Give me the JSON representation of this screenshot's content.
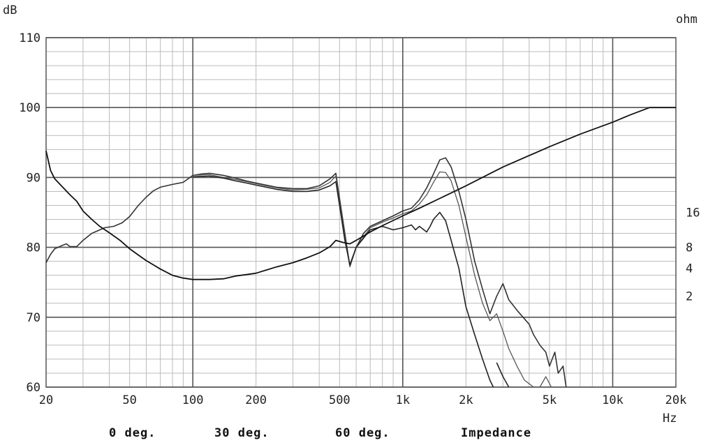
{
  "chart_data": {
    "type": "line",
    "x_scale": "log",
    "xlim": [
      20,
      20000
    ],
    "ylim": [
      60,
      110
    ],
    "grid": true,
    "y_unit": "dB",
    "y2_unit": "ohm",
    "x_unit": "Hz",
    "x_ticks": [
      {
        "v": 20,
        "label": "20"
      },
      {
        "v": 50,
        "label": "50"
      },
      {
        "v": 100,
        "label": "100"
      },
      {
        "v": 200,
        "label": "200"
      },
      {
        "v": 500,
        "label": "500"
      },
      {
        "v": 1000,
        "label": "1k"
      },
      {
        "v": 2000,
        "label": "2k"
      },
      {
        "v": 5000,
        "label": "5k"
      },
      {
        "v": 10000,
        "label": "10k"
      },
      {
        "v": 20000,
        "label": "20k"
      }
    ],
    "y_ticks": [
      {
        "v": 60,
        "label": "60"
      },
      {
        "v": 70,
        "label": "70"
      },
      {
        "v": 80,
        "label": "80"
      },
      {
        "v": 90,
        "label": "90"
      },
      {
        "v": 100,
        "label": "100"
      },
      {
        "v": 110,
        "label": "110"
      }
    ],
    "y2_ticks": [
      {
        "v": 2,
        "label": "2",
        "at_db": 73
      },
      {
        "v": 4,
        "label": "4",
        "at_db": 77
      },
      {
        "v": 8,
        "label": "8",
        "at_db": 80
      },
      {
        "v": 16,
        "label": "16",
        "at_db": 85
      }
    ],
    "legend": [
      "0 deg.",
      "30 deg.",
      "60 deg.",
      "Impedance"
    ],
    "series": [
      {
        "name": "0 deg.",
        "points": [
          [
            20,
            77.8
          ],
          [
            21,
            79
          ],
          [
            22,
            79.8
          ],
          [
            24,
            80.3
          ],
          [
            25,
            80.5
          ],
          [
            26,
            80.1
          ],
          [
            28,
            80.1
          ],
          [
            30,
            81
          ],
          [
            33,
            82
          ],
          [
            38,
            82.8
          ],
          [
            42,
            83
          ],
          [
            46,
            83.5
          ],
          [
            50,
            84.4
          ],
          [
            55,
            86
          ],
          [
            60,
            87.2
          ],
          [
            65,
            88.1
          ],
          [
            70,
            88.6
          ],
          [
            80,
            89
          ],
          [
            90,
            89.3
          ],
          [
            100,
            90.3
          ],
          [
            110,
            90.5
          ],
          [
            120,
            90.6
          ],
          [
            140,
            90.3
          ],
          [
            160,
            89.9
          ],
          [
            180,
            89.5
          ],
          [
            200,
            89.2
          ],
          [
            250,
            88.6
          ],
          [
            300,
            88.4
          ],
          [
            350,
            88.4
          ],
          [
            400,
            88.8
          ],
          [
            450,
            89.8
          ],
          [
            480,
            90.6
          ],
          [
            500,
            87
          ],
          [
            530,
            82
          ],
          [
            560,
            77.3
          ],
          [
            600,
            80
          ],
          [
            650,
            82
          ],
          [
            700,
            83
          ],
          [
            800,
            83.8
          ],
          [
            900,
            84.5
          ],
          [
            1000,
            85.2
          ],
          [
            1100,
            85.6
          ],
          [
            1200,
            86.8
          ],
          [
            1300,
            88.5
          ],
          [
            1400,
            90.5
          ],
          [
            1500,
            92.5
          ],
          [
            1600,
            92.8
          ],
          [
            1700,
            91.5
          ],
          [
            1850,
            88
          ],
          [
            2000,
            84
          ],
          [
            2200,
            78
          ],
          [
            2400,
            74
          ],
          [
            2600,
            70.5
          ],
          [
            2800,
            73
          ],
          [
            3000,
            74.8
          ],
          [
            3200,
            72.5
          ],
          [
            3500,
            71
          ],
          [
            4000,
            69
          ],
          [
            4200,
            67.5
          ],
          [
            4500,
            66
          ],
          [
            4800,
            65
          ],
          [
            5000,
            63
          ],
          [
            5300,
            65
          ],
          [
            5500,
            62
          ],
          [
            5800,
            63
          ],
          [
            6000,
            60
          ]
        ]
      },
      {
        "name": "30 deg.",
        "points": [
          [
            100,
            90.3
          ],
          [
            120,
            90.4
          ],
          [
            140,
            90
          ],
          [
            160,
            89.7
          ],
          [
            180,
            89.4
          ],
          [
            200,
            89.1
          ],
          [
            250,
            88.5
          ],
          [
            300,
            88.2
          ],
          [
            350,
            88.3
          ],
          [
            400,
            88.5
          ],
          [
            450,
            89.3
          ],
          [
            480,
            90.2
          ],
          [
            500,
            86.5
          ],
          [
            530,
            81.5
          ],
          [
            560,
            77.2
          ],
          [
            600,
            80
          ],
          [
            700,
            82.8
          ],
          [
            800,
            83.6
          ],
          [
            900,
            84.2
          ],
          [
            1000,
            84.8
          ],
          [
            1100,
            85.2
          ],
          [
            1200,
            86.2
          ],
          [
            1300,
            87.5
          ],
          [
            1400,
            89.3
          ],
          [
            1500,
            90.8
          ],
          [
            1600,
            90.7
          ],
          [
            1700,
            89.5
          ],
          [
            1850,
            86
          ],
          [
            2000,
            81.5
          ],
          [
            2200,
            76
          ],
          [
            2400,
            72
          ],
          [
            2600,
            69.5
          ],
          [
            2800,
            70.5
          ],
          [
            3000,
            68
          ],
          [
            3200,
            65.5
          ],
          [
            3500,
            63
          ],
          [
            3800,
            61
          ],
          [
            4200,
            60
          ]
        ]
      },
      {
        "name": "60 deg.",
        "points": [
          [
            100,
            90.1
          ],
          [
            120,
            90.2
          ],
          [
            140,
            89.9
          ],
          [
            160,
            89.5
          ],
          [
            180,
            89.2
          ],
          [
            200,
            88.9
          ],
          [
            250,
            88.3
          ],
          [
            300,
            88
          ],
          [
            350,
            88
          ],
          [
            400,
            88.2
          ],
          [
            450,
            88.8
          ],
          [
            480,
            89.4
          ],
          [
            500,
            86
          ],
          [
            530,
            81
          ],
          [
            560,
            77.5
          ],
          [
            600,
            80
          ],
          [
            700,
            82.5
          ],
          [
            800,
            83
          ],
          [
            900,
            82.5
          ],
          [
            1000,
            82.8
          ],
          [
            1100,
            83.2
          ],
          [
            1150,
            82.5
          ],
          [
            1200,
            83
          ],
          [
            1300,
            82.2
          ],
          [
            1350,
            83
          ],
          [
            1400,
            84
          ],
          [
            1500,
            85
          ],
          [
            1600,
            83.8
          ],
          [
            1700,
            81
          ],
          [
            1850,
            77
          ],
          [
            2000,
            71.5
          ],
          [
            2200,
            67.5
          ],
          [
            2400,
            64
          ],
          [
            2600,
            61
          ],
          [
            2700,
            60
          ]
        ]
      },
      {
        "name": "Impedance",
        "points": [
          [
            20,
            93.8
          ],
          [
            21,
            91
          ],
          [
            22,
            89.8
          ],
          [
            24,
            88.6
          ],
          [
            26,
            87.5
          ],
          [
            28,
            86.6
          ],
          [
            30,
            85.2
          ],
          [
            33,
            84
          ],
          [
            36,
            83
          ],
          [
            40,
            82.1
          ],
          [
            45,
            81
          ],
          [
            50,
            79.8
          ],
          [
            55,
            78.9
          ],
          [
            60,
            78.1
          ],
          [
            70,
            76.9
          ],
          [
            80,
            76
          ],
          [
            90,
            75.6
          ],
          [
            100,
            75.4
          ],
          [
            120,
            75.4
          ],
          [
            140,
            75.5
          ],
          [
            160,
            75.9
          ],
          [
            180,
            76.1
          ],
          [
            200,
            76.3
          ],
          [
            250,
            77.2
          ],
          [
            300,
            77.8
          ],
          [
            350,
            78.5
          ],
          [
            400,
            79.2
          ],
          [
            450,
            80.1
          ],
          [
            480,
            81
          ],
          [
            520,
            80.7
          ],
          [
            560,
            80.5
          ],
          [
            600,
            81
          ],
          [
            700,
            82.2
          ],
          [
            800,
            83.1
          ],
          [
            1000,
            84.5
          ],
          [
            1200,
            85.6
          ],
          [
            1500,
            87
          ],
          [
            2000,
            88.8
          ],
          [
            3000,
            91.5
          ],
          [
            5000,
            94.4
          ],
          [
            7000,
            96.2
          ],
          [
            10000,
            97.9
          ],
          [
            12000,
            98.9
          ],
          [
            15000,
            100
          ],
          [
            20000,
            100
          ]
        ]
      }
    ],
    "extra_segments": [
      {
        "name": "30 deg.",
        "points": [
          [
            4500,
            60
          ],
          [
            4800,
            61.5
          ],
          [
            5100,
            60
          ]
        ]
      },
      {
        "name": "60 deg.",
        "points": [
          [
            2800,
            63.5
          ],
          [
            3000,
            61.5
          ],
          [
            3200,
            60
          ]
        ]
      }
    ]
  }
}
